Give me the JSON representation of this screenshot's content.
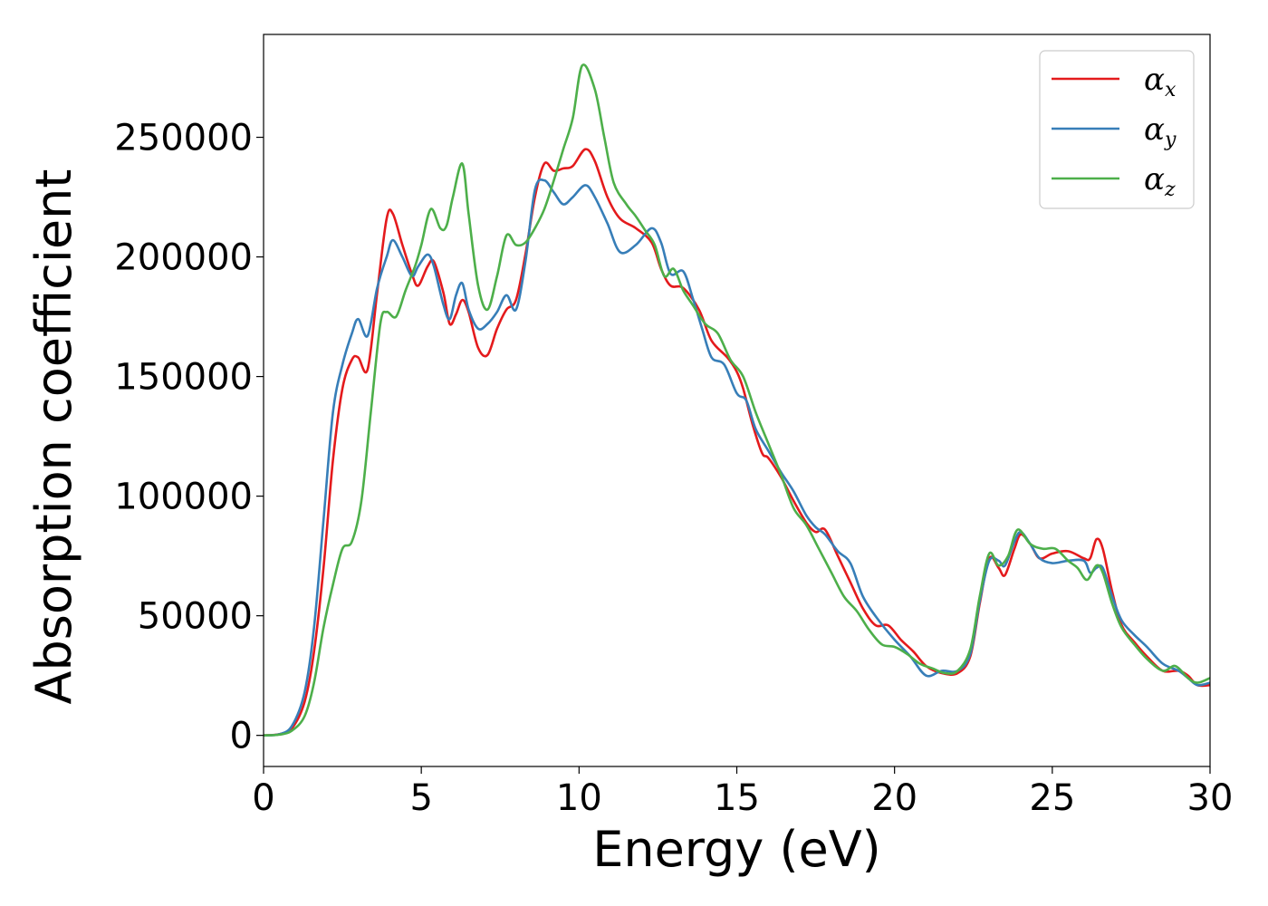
{
  "chart_data": {
    "type": "line",
    "title": "",
    "xlabel": "Energy (eV)",
    "ylabel": "Absorption coefficient",
    "xlim": [
      0,
      30
    ],
    "ylim": [
      -13000,
      293000
    ],
    "xticks": [
      0,
      5,
      10,
      15,
      20,
      25,
      30
    ],
    "xtick_labels": [
      "0",
      "5",
      "10",
      "15",
      "20",
      "25",
      "30"
    ],
    "yticks": [
      0,
      50000,
      100000,
      150000,
      200000,
      250000
    ],
    "ytick_labels": [
      "0",
      "50000",
      "100000",
      "150000",
      "200000",
      "250000"
    ],
    "grid": false,
    "legend_position": "top-right",
    "colors": {
      "red": "#e41a1c",
      "blue": "#377eb8",
      "green": "#4daf4a"
    },
    "series": [
      {
        "name": "α",
        "subscript": "x",
        "color": "#e41a1c",
        "points": [
          [
            0,
            0
          ],
          [
            0.5,
            500
          ],
          [
            0.9,
            3000
          ],
          [
            1.3,
            14000
          ],
          [
            1.6,
            35000
          ],
          [
            1.9,
            70000
          ],
          [
            2.2,
            115000
          ],
          [
            2.5,
            145000
          ],
          [
            2.8,
            157000
          ],
          [
            3.0,
            158000
          ],
          [
            3.3,
            153000
          ],
          [
            3.6,
            185000
          ],
          [
            3.9,
            216000
          ],
          [
            4.1,
            218000
          ],
          [
            4.4,
            205000
          ],
          [
            4.7,
            193000
          ],
          [
            4.9,
            188000
          ],
          [
            5.2,
            196000
          ],
          [
            5.4,
            198000
          ],
          [
            5.7,
            185000
          ],
          [
            5.9,
            172000
          ],
          [
            6.1,
            176000
          ],
          [
            6.3,
            182000
          ],
          [
            6.5,
            177000
          ],
          [
            6.8,
            162000
          ],
          [
            7.1,
            159000
          ],
          [
            7.4,
            170000
          ],
          [
            7.7,
            178000
          ],
          [
            8.0,
            182000
          ],
          [
            8.3,
            201000
          ],
          [
            8.6,
            225000
          ],
          [
            8.9,
            239000
          ],
          [
            9.2,
            236000
          ],
          [
            9.5,
            237000
          ],
          [
            9.8,
            238000
          ],
          [
            10.2,
            245000
          ],
          [
            10.5,
            240000
          ],
          [
            10.9,
            225000
          ],
          [
            11.3,
            216000
          ],
          [
            11.8,
            212000
          ],
          [
            12.3,
            206000
          ],
          [
            12.6,
            195000
          ],
          [
            12.9,
            188000
          ],
          [
            13.3,
            187000
          ],
          [
            13.8,
            178000
          ],
          [
            14.2,
            165000
          ],
          [
            14.7,
            158000
          ],
          [
            15.0,
            152000
          ],
          [
            15.2,
            145000
          ],
          [
            15.5,
            130000
          ],
          [
            15.8,
            118000
          ],
          [
            16.0,
            116000
          ],
          [
            16.4,
            108000
          ],
          [
            16.8,
            98000
          ],
          [
            17.2,
            89000
          ],
          [
            17.5,
            85000
          ],
          [
            17.8,
            86000
          ],
          [
            18.2,
            75000
          ],
          [
            18.6,
            64000
          ],
          [
            19.0,
            53000
          ],
          [
            19.4,
            46000
          ],
          [
            19.8,
            46000
          ],
          [
            20.2,
            40000
          ],
          [
            20.6,
            35000
          ],
          [
            21.0,
            29000
          ],
          [
            21.5,
            26000
          ],
          [
            22.0,
            26000
          ],
          [
            22.4,
            33000
          ],
          [
            22.7,
            55000
          ],
          [
            23.0,
            74000
          ],
          [
            23.3,
            70000
          ],
          [
            23.5,
            67000
          ],
          [
            23.8,
            78000
          ],
          [
            24.0,
            84000
          ],
          [
            24.3,
            80000
          ],
          [
            24.6,
            74000
          ],
          [
            25.0,
            76000
          ],
          [
            25.5,
            77000
          ],
          [
            26.0,
            74000
          ],
          [
            26.2,
            74000
          ],
          [
            26.4,
            82000
          ],
          [
            26.6,
            78000
          ],
          [
            26.9,
            60000
          ],
          [
            27.2,
            46000
          ],
          [
            27.6,
            39000
          ],
          [
            28.0,
            33000
          ],
          [
            28.5,
            27000
          ],
          [
            29.0,
            27000
          ],
          [
            29.3,
            25000
          ],
          [
            29.6,
            21000
          ],
          [
            30,
            21000
          ]
        ]
      },
      {
        "name": "α",
        "subscript": "y",
        "color": "#377eb8",
        "points": [
          [
            0,
            0
          ],
          [
            0.5,
            500
          ],
          [
            0.9,
            4000
          ],
          [
            1.3,
            18000
          ],
          [
            1.6,
            45000
          ],
          [
            1.9,
            90000
          ],
          [
            2.2,
            135000
          ],
          [
            2.5,
            155000
          ],
          [
            2.8,
            168000
          ],
          [
            3.0,
            174000
          ],
          [
            3.3,
            167000
          ],
          [
            3.6,
            187000
          ],
          [
            3.9,
            200000
          ],
          [
            4.1,
            207000
          ],
          [
            4.4,
            200000
          ],
          [
            4.7,
            192000
          ],
          [
            4.9,
            196000
          ],
          [
            5.2,
            201000
          ],
          [
            5.4,
            196000
          ],
          [
            5.7,
            180000
          ],
          [
            5.9,
            174000
          ],
          [
            6.1,
            184000
          ],
          [
            6.3,
            189000
          ],
          [
            6.5,
            178000
          ],
          [
            6.8,
            170000
          ],
          [
            7.1,
            172000
          ],
          [
            7.4,
            177000
          ],
          [
            7.7,
            184000
          ],
          [
            8.0,
            178000
          ],
          [
            8.3,
            198000
          ],
          [
            8.6,
            228000
          ],
          [
            8.9,
            232000
          ],
          [
            9.2,
            227000
          ],
          [
            9.5,
            222000
          ],
          [
            9.8,
            225000
          ],
          [
            10.2,
            230000
          ],
          [
            10.5,
            225000
          ],
          [
            10.9,
            214000
          ],
          [
            11.3,
            202000
          ],
          [
            11.8,
            205000
          ],
          [
            12.3,
            212000
          ],
          [
            12.6,
            206000
          ],
          [
            12.9,
            193000
          ],
          [
            13.3,
            194000
          ],
          [
            13.6,
            183000
          ],
          [
            13.9,
            170000
          ],
          [
            14.2,
            158000
          ],
          [
            14.6,
            155000
          ],
          [
            15.0,
            143000
          ],
          [
            15.3,
            140000
          ],
          [
            15.6,
            128000
          ],
          [
            16.0,
            119000
          ],
          [
            16.4,
            110000
          ],
          [
            16.8,
            102000
          ],
          [
            17.2,
            92000
          ],
          [
            17.5,
            87000
          ],
          [
            17.8,
            84000
          ],
          [
            18.2,
            77000
          ],
          [
            18.6,
            72000
          ],
          [
            19.0,
            58000
          ],
          [
            19.5,
            48000
          ],
          [
            20.0,
            40000
          ],
          [
            20.5,
            33000
          ],
          [
            21.0,
            25000
          ],
          [
            21.5,
            27000
          ],
          [
            22.0,
            27000
          ],
          [
            22.4,
            34000
          ],
          [
            22.7,
            56000
          ],
          [
            23.0,
            73000
          ],
          [
            23.3,
            73000
          ],
          [
            23.5,
            71000
          ],
          [
            23.8,
            81000
          ],
          [
            24.0,
            85000
          ],
          [
            24.3,
            80000
          ],
          [
            24.6,
            74000
          ],
          [
            25.0,
            72000
          ],
          [
            25.5,
            73000
          ],
          [
            26.0,
            73000
          ],
          [
            26.2,
            68000
          ],
          [
            26.4,
            70000
          ],
          [
            26.6,
            70000
          ],
          [
            26.9,
            58000
          ],
          [
            27.2,
            48000
          ],
          [
            27.6,
            42000
          ],
          [
            28.0,
            37000
          ],
          [
            28.5,
            30000
          ],
          [
            29.0,
            27000
          ],
          [
            29.3,
            24000
          ],
          [
            29.6,
            21000
          ],
          [
            30,
            22000
          ]
        ]
      },
      {
        "name": "α",
        "subscript": "z",
        "color": "#4daf4a",
        "points": [
          [
            0,
            0
          ],
          [
            0.5,
            300
          ],
          [
            0.9,
            2000
          ],
          [
            1.3,
            8000
          ],
          [
            1.6,
            22000
          ],
          [
            1.9,
            45000
          ],
          [
            2.2,
            63000
          ],
          [
            2.5,
            78000
          ],
          [
            2.8,
            81000
          ],
          [
            3.1,
            98000
          ],
          [
            3.4,
            135000
          ],
          [
            3.7,
            172000
          ],
          [
            3.9,
            177000
          ],
          [
            4.2,
            175000
          ],
          [
            4.5,
            186000
          ],
          [
            4.8,
            196000
          ],
          [
            5.0,
            205000
          ],
          [
            5.3,
            220000
          ],
          [
            5.6,
            212000
          ],
          [
            5.8,
            213000
          ],
          [
            6.0,
            225000
          ],
          [
            6.3,
            239000
          ],
          [
            6.5,
            218000
          ],
          [
            6.8,
            188000
          ],
          [
            7.1,
            178000
          ],
          [
            7.4,
            192000
          ],
          [
            7.7,
            209000
          ],
          [
            8.0,
            205000
          ],
          [
            8.3,
            206000
          ],
          [
            8.6,
            212000
          ],
          [
            8.9,
            220000
          ],
          [
            9.2,
            232000
          ],
          [
            9.5,
            245000
          ],
          [
            9.8,
            258000
          ],
          [
            10.1,
            280000
          ],
          [
            10.5,
            270000
          ],
          [
            10.8,
            250000
          ],
          [
            11.1,
            231000
          ],
          [
            11.5,
            222000
          ],
          [
            11.8,
            217000
          ],
          [
            12.1,
            211000
          ],
          [
            12.4,
            205000
          ],
          [
            12.7,
            192000
          ],
          [
            13.0,
            195000
          ],
          [
            13.3,
            186000
          ],
          [
            13.6,
            180000
          ],
          [
            14.0,
            172000
          ],
          [
            14.4,
            168000
          ],
          [
            14.8,
            157000
          ],
          [
            15.2,
            150000
          ],
          [
            15.6,
            135000
          ],
          [
            16.0,
            122000
          ],
          [
            16.4,
            109000
          ],
          [
            16.8,
            95000
          ],
          [
            17.2,
            88000
          ],
          [
            17.6,
            78000
          ],
          [
            18.0,
            68000
          ],
          [
            18.4,
            58000
          ],
          [
            18.8,
            52000
          ],
          [
            19.2,
            44000
          ],
          [
            19.6,
            38000
          ],
          [
            20.0,
            37000
          ],
          [
            20.4,
            34000
          ],
          [
            20.8,
            30000
          ],
          [
            21.2,
            28000
          ],
          [
            21.6,
            26000
          ],
          [
            22.0,
            27000
          ],
          [
            22.4,
            36000
          ],
          [
            22.7,
            58000
          ],
          [
            23.0,
            76000
          ],
          [
            23.3,
            71000
          ],
          [
            23.6,
            75000
          ],
          [
            23.9,
            86000
          ],
          [
            24.3,
            80000
          ],
          [
            24.7,
            78000
          ],
          [
            25.1,
            78000
          ],
          [
            25.5,
            73000
          ],
          [
            25.8,
            70000
          ],
          [
            26.1,
            65000
          ],
          [
            26.4,
            71000
          ],
          [
            26.6,
            68000
          ],
          [
            26.9,
            55000
          ],
          [
            27.2,
            45000
          ],
          [
            27.6,
            38000
          ],
          [
            28.0,
            32000
          ],
          [
            28.5,
            27000
          ],
          [
            28.9,
            29000
          ],
          [
            29.3,
            24000
          ],
          [
            29.6,
            22000
          ],
          [
            30,
            24000
          ]
        ]
      }
    ]
  }
}
